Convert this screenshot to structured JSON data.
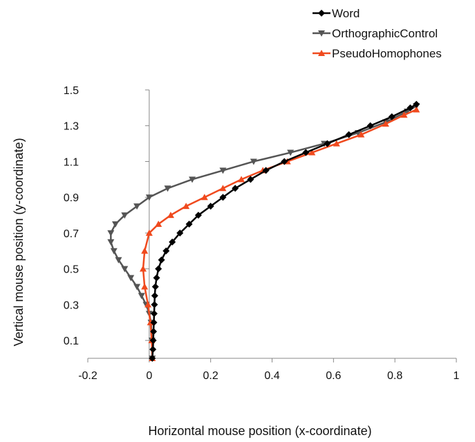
{
  "chart_data": {
    "type": "line",
    "title": "",
    "xlabel": "Horizontal mouse position (x-coordinate)",
    "ylabel": "Vertical mouse position (y-coordinate)",
    "xlim": [
      -0.2,
      1
    ],
    "ylim": [
      0,
      1.5
    ],
    "x_ticks": [
      "-0.2",
      "0",
      "0.2",
      "0.4",
      "0.6",
      "0.8",
      "1"
    ],
    "y_ticks": [
      "0.1",
      "0.3",
      "0.5",
      "0.7",
      "0.9",
      "1.1",
      "1.3",
      "1.5"
    ],
    "grid": false,
    "legend_position": "top-right",
    "series": [
      {
        "name": "Word",
        "color": "#000000",
        "marker": "diamond",
        "points": [
          [
            0.01,
            0.0
          ],
          [
            0.012,
            0.05
          ],
          [
            0.013,
            0.1
          ],
          [
            0.014,
            0.15
          ],
          [
            0.015,
            0.2
          ],
          [
            0.016,
            0.25
          ],
          [
            0.017,
            0.3
          ],
          [
            0.018,
            0.35
          ],
          [
            0.02,
            0.4
          ],
          [
            0.024,
            0.45
          ],
          [
            0.03,
            0.5
          ],
          [
            0.04,
            0.55
          ],
          [
            0.055,
            0.6
          ],
          [
            0.075,
            0.65
          ],
          [
            0.1,
            0.7
          ],
          [
            0.13,
            0.75
          ],
          [
            0.16,
            0.8
          ],
          [
            0.2,
            0.85
          ],
          [
            0.24,
            0.9
          ],
          [
            0.28,
            0.95
          ],
          [
            0.33,
            1.0
          ],
          [
            0.38,
            1.05
          ],
          [
            0.44,
            1.1
          ],
          [
            0.51,
            1.15
          ],
          [
            0.58,
            1.2
          ],
          [
            0.65,
            1.25
          ],
          [
            0.72,
            1.3
          ],
          [
            0.79,
            1.35
          ],
          [
            0.85,
            1.4
          ],
          [
            0.87,
            1.42
          ]
        ]
      },
      {
        "name": "OrthographicControl",
        "color": "#555555",
        "marker": "triangle-down",
        "points": [
          [
            0.01,
            0.0
          ],
          [
            0.009,
            0.1
          ],
          [
            0.006,
            0.2
          ],
          [
            0.0,
            0.25
          ],
          [
            -0.01,
            0.3
          ],
          [
            -0.025,
            0.35
          ],
          [
            -0.04,
            0.4
          ],
          [
            -0.06,
            0.45
          ],
          [
            -0.08,
            0.5
          ],
          [
            -0.1,
            0.55
          ],
          [
            -0.115,
            0.6
          ],
          [
            -0.125,
            0.65
          ],
          [
            -0.125,
            0.7
          ],
          [
            -0.11,
            0.75
          ],
          [
            -0.08,
            0.8
          ],
          [
            -0.04,
            0.85
          ],
          [
            0.0,
            0.9
          ],
          [
            0.06,
            0.95
          ],
          [
            0.14,
            1.0
          ],
          [
            0.24,
            1.05
          ],
          [
            0.34,
            1.1
          ],
          [
            0.46,
            1.15
          ],
          [
            0.57,
            1.2
          ],
          [
            0.68,
            1.26
          ],
          [
            0.77,
            1.32
          ],
          [
            0.84,
            1.38
          ],
          [
            0.87,
            1.41
          ]
        ]
      },
      {
        "name": "PseudoHomophones",
        "color": "#f04a1e",
        "marker": "triangle-up",
        "points": [
          [
            0.01,
            0.0
          ],
          [
            0.008,
            0.1
          ],
          [
            0.004,
            0.2
          ],
          [
            -0.004,
            0.3
          ],
          [
            -0.015,
            0.4
          ],
          [
            -0.02,
            0.5
          ],
          [
            -0.015,
            0.6
          ],
          [
            0.0,
            0.7
          ],
          [
            0.03,
            0.75
          ],
          [
            0.07,
            0.8
          ],
          [
            0.12,
            0.85
          ],
          [
            0.18,
            0.9
          ],
          [
            0.24,
            0.95
          ],
          [
            0.3,
            1.0
          ],
          [
            0.37,
            1.05
          ],
          [
            0.45,
            1.1
          ],
          [
            0.53,
            1.15
          ],
          [
            0.61,
            1.2
          ],
          [
            0.69,
            1.25
          ],
          [
            0.77,
            1.31
          ],
          [
            0.83,
            1.36
          ],
          [
            0.87,
            1.39
          ]
        ]
      }
    ]
  }
}
